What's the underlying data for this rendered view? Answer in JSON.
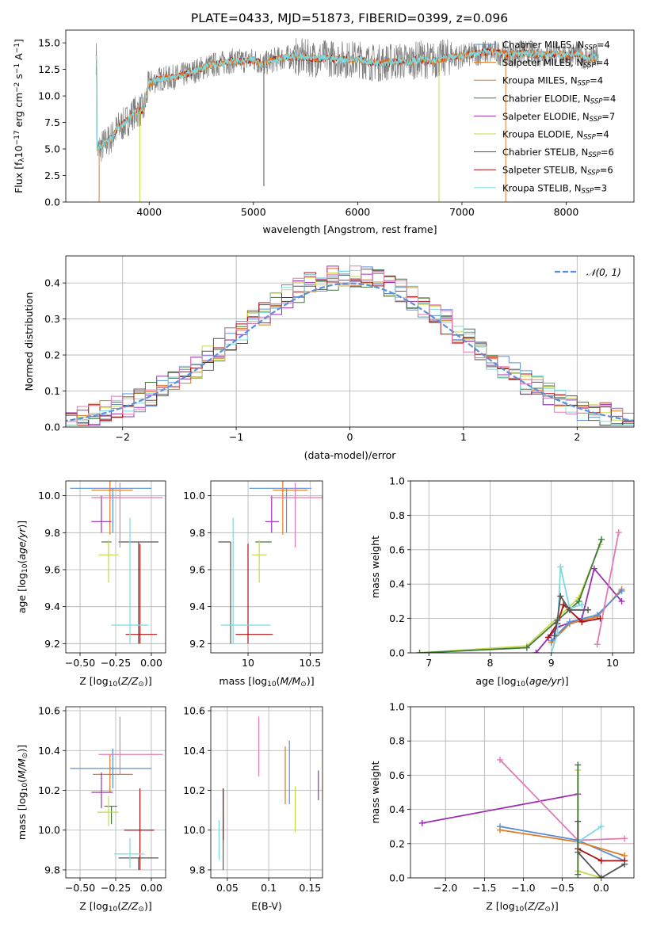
{
  "title": "PLATE=0433, MJD=51873, FIBERID=0399, z=0.096",
  "colors": {
    "Chabrier MILES": "#5b8fd9",
    "Salpeter MILES": "#e07a1f",
    "Kroupa MILES": "#e07a1f",
    "Chabrier ELODIE": "#3d7a3d",
    "Salpeter ELODIE": "#9b2fb0",
    "Kroupa ELODIE": "#c8d84a",
    "Chabrier STELIB": "#555555",
    "Salpeter STELIB": "#a81010",
    "Kroupa STELIB": "#7fd8df",
    "extra_pink": "#e37ab4"
  },
  "chart_data": [
    {
      "id": "spectrum",
      "type": "line",
      "xlabel": "wavelength [Angstrom, rest frame]",
      "ylabel": "Flux [f_λ10^-17 erg cm^-2 s^-1 A^-1]",
      "xlim": [
        3200,
        8650
      ],
      "ylim": [
        0,
        16.2
      ],
      "xticks": [
        4000,
        5000,
        6000,
        7000,
        8000
      ],
      "yticks": [
        0.0,
        2.5,
        5.0,
        7.5,
        10.0,
        12.5,
        15.0
      ],
      "grid": false,
      "legend_position": "top-right",
      "legend": [
        {
          "name": "Chabrier MILES",
          "sub": "SSP",
          "n": "=4"
        },
        {
          "name": "Salpeter MILES",
          "sub": "SSP",
          "n": "=4"
        },
        {
          "name": "Kroupa MILES",
          "sub": "SSP",
          "n": "=4"
        },
        {
          "name": "Chabrier ELODIE",
          "sub": "SSP",
          "n": "=4"
        },
        {
          "name": "Salpeter ELODIE",
          "sub": "SSP",
          "n": "=7"
        },
        {
          "name": "Kroupa ELODIE",
          "sub": "SSP",
          "n": "=4"
        },
        {
          "name": "Chabrier STELIB",
          "sub": "SSP",
          "n": "=6"
        },
        {
          "name": "Salpeter STELIB",
          "sub": "SSP",
          "n": "=6"
        },
        {
          "name": "Kroupa STELIB",
          "sub": "SSP",
          "n": "=3"
        }
      ],
      "continuum": [
        [
          3500,
          4.8
        ],
        [
          3550,
          5.3
        ],
        [
          3600,
          5.7
        ],
        [
          3650,
          6.2
        ],
        [
          3700,
          7.0
        ],
        [
          3750,
          7.3
        ],
        [
          3800,
          7.8
        ],
        [
          3850,
          8.4
        ],
        [
          3900,
          8.6
        ],
        [
          3950,
          8.7
        ],
        [
          4000,
          11.2
        ],
        [
          4100,
          11.6
        ],
        [
          4200,
          11.7
        ],
        [
          4300,
          11.9
        ],
        [
          4400,
          12.2
        ],
        [
          4500,
          12.6
        ],
        [
          4600,
          12.9
        ],
        [
          4700,
          13.1
        ],
        [
          4800,
          13.3
        ],
        [
          4900,
          13.3
        ],
        [
          5000,
          13.4
        ],
        [
          5100,
          13.0
        ],
        [
          5200,
          13.4
        ],
        [
          5300,
          13.6
        ],
        [
          5400,
          13.7
        ],
        [
          5500,
          13.6
        ],
        [
          5600,
          13.5
        ],
        [
          5700,
          13.6
        ],
        [
          5800,
          13.5
        ],
        [
          5900,
          13.4
        ],
        [
          6000,
          13.5
        ],
        [
          6100,
          13.2
        ],
        [
          6200,
          13.1
        ],
        [
          6300,
          13.2
        ],
        [
          6400,
          13.3
        ],
        [
          6500,
          13.2
        ],
        [
          6600,
          13.5
        ],
        [
          6700,
          13.3
        ],
        [
          6800,
          13.5
        ],
        [
          6900,
          13.7
        ],
        [
          7000,
          13.7
        ],
        [
          7100,
          13.9
        ],
        [
          7200,
          14.1
        ],
        [
          7300,
          14.1
        ],
        [
          7400,
          14.0
        ],
        [
          7500,
          13.9
        ],
        [
          7600,
          14.1
        ],
        [
          7700,
          13.9
        ],
        [
          7800,
          13.9
        ],
        [
          7900,
          14.0
        ],
        [
          8000,
          13.8
        ],
        [
          8100,
          14.0
        ],
        [
          8200,
          13.5
        ],
        [
          8300,
          13.6
        ]
      ],
      "spikes": [
        [
          3520,
          0
        ],
        [
          3910,
          0
        ],
        [
          5100,
          1.5
        ],
        [
          6780,
          0
        ],
        [
          7420,
          0
        ]
      ]
    },
    {
      "id": "residuals",
      "type": "histogram",
      "xlabel": "(data-model)/error",
      "ylabel": "Normed distribution",
      "xlim": [
        -2.5,
        2.5
      ],
      "ylim": [
        0,
        0.475
      ],
      "xticks": [
        -2,
        -1,
        0,
        1,
        2
      ],
      "yticks": [
        0.0,
        0.1,
        0.2,
        0.3,
        0.4
      ],
      "grid": true,
      "legend_position": "top-right",
      "legend": [
        {
          "name": "𝒩(0, 1)"
        }
      ],
      "bin_width": 0.1
    },
    {
      "id": "age_vs_Z",
      "type": "scatter",
      "xlabel": "Z [log10(Z/Z⊙)]",
      "ylabel": "age [log10(age/yr)]",
      "xlim": [
        -0.6,
        0.1
      ],
      "ylim": [
        9.15,
        10.08
      ],
      "xticks": [
        -0.5,
        -0.25,
        0.0
      ],
      "xticklabels": [
        "−0.50",
        "−0.25",
        "0.00"
      ],
      "yticks": [
        9.2,
        9.4,
        9.6,
        9.8,
        10.0
      ],
      "grid": true
    },
    {
      "id": "age_vs_mass",
      "type": "scatter",
      "xlabel": "mass [log10(M/M⊙)]",
      "xlim": [
        9.7,
        10.6
      ],
      "ylim": [
        9.15,
        10.08
      ],
      "xticks": [
        10.0,
        10.5
      ],
      "yticks": [
        9.2,
        9.4,
        9.6,
        9.8,
        10.0
      ],
      "grid": true
    },
    {
      "id": "weight_vs_age",
      "type": "line",
      "xlabel": "age [log10(age/yr)]",
      "ylabel": "mass weight",
      "xlim": [
        6.7,
        10.35
      ],
      "ylim": [
        0,
        1.0
      ],
      "xticks": [
        7,
        8,
        9,
        10
      ],
      "yticks": [
        0.0,
        0.2,
        0.4,
        0.6,
        0.8,
        1.0
      ],
      "grid": true
    },
    {
      "id": "mass_vs_Z",
      "type": "scatter",
      "xlabel": "Z [log10(Z/Z⊙)]",
      "ylabel": "mass [log10(M/M⊙)]",
      "xlim": [
        -0.6,
        0.1
      ],
      "ylim": [
        9.76,
        10.62
      ],
      "xticks": [
        -0.5,
        -0.25,
        0.0
      ],
      "xticklabels": [
        "−0.50",
        "−0.25",
        "0.00"
      ],
      "yticks": [
        9.8,
        10.0,
        10.2,
        10.4,
        10.6
      ],
      "grid": true
    },
    {
      "id": "mass_vs_ebv",
      "type": "scatter",
      "xlabel": "E(B-V)",
      "xlim": [
        0.03,
        0.165
      ],
      "ylim": [
        9.76,
        10.62
      ],
      "xticks": [
        0.05,
        0.1,
        0.15
      ],
      "yticks": [
        9.8,
        10.0,
        10.2,
        10.4,
        10.6
      ],
      "grid": true
    },
    {
      "id": "weight_vs_Z",
      "type": "line",
      "xlabel": "Z [log10(Z/Z⊙)]",
      "ylabel": "mass weight",
      "xlim": [
        -2.45,
        0.42
      ],
      "ylim": [
        0,
        1.0
      ],
      "xticks": [
        -2.0,
        -1.5,
        -1.0,
        -0.5,
        0.0
      ],
      "xticklabels": [
        "−2.0",
        "−1.5",
        "−1.0",
        "−0.5",
        "0.0"
      ],
      "yticks": [
        0.0,
        0.2,
        0.4,
        0.6,
        0.8,
        1.0
      ],
      "grid": true
    }
  ],
  "models": [
    {
      "name": "Chabrier MILES",
      "color": "#5b8fd9",
      "Z": -0.27,
      "Zerr": [
        0.3,
        0.27
      ],
      "age": 10.04,
      "ageErr": [
        0.24,
        0.0
      ],
      "mass": 10.31,
      "massErr": [
        0.1,
        0.1
      ],
      "massZerr": [
        0.3,
        0.27
      ],
      "massAgeErr": [
        0.3,
        0.2
      ],
      "ebv": 0.125,
      "ebvErr": [
        0.115,
        0.135
      ],
      "ebvMass": [
        10.13,
        10.45
      ]
    },
    {
      "name": "Kroupa MILES",
      "color": "#e07a1f",
      "Z": -0.29,
      "Zerr": [
        0.13,
        0.16
      ],
      "age": 10.03,
      "ageErr": [
        0.24,
        0.07
      ],
      "mass": 10.28,
      "massErr": [
        0.09,
        0.1
      ],
      "massZerr": [
        0.12,
        0.16
      ],
      "massAgeErr": [
        0.08,
        0.2
      ],
      "ebv": 0.12,
      "ebvErr": [
        0.12,
        0.12
      ],
      "ebvMass": [
        10.13,
        10.42
      ]
    },
    {
      "name": "Chabrier ELODIE",
      "color": "#3d7a3d",
      "Z": -0.28,
      "Zerr": [
        0.07,
        0.0
      ],
      "age": 9.75,
      "ageErr": [
        0.0,
        0.0
      ],
      "mass": 10.12,
      "massErr": [
        0.09,
        0.0
      ],
      "massZerr": [
        0.05,
        0.04
      ],
      "massAgeErr": [
        0.06,
        0.07
      ],
      "ebv": 0.13,
      "ebvErr": [
        0.13,
        0.13
      ],
      "ebvMass": [
        10.0,
        10.0
      ]
    },
    {
      "name": "Salpeter ELODIE",
      "color": "#9b2fb0",
      "Z": -0.35,
      "Zerr": [
        0.07,
        0.07
      ],
      "age": 9.86,
      "ageErr": [
        0.06,
        0.14
      ],
      "mass": 10.19,
      "massErr": [
        0.08,
        0.1
      ],
      "massZerr": [
        0.07,
        0.08
      ],
      "massAgeErr": [
        0.05,
        0.06
      ],
      "ebv": 0.16,
      "ebvErr": [
        0.16,
        0.16
      ],
      "ebvMass": [
        10.15,
        10.3
      ]
    },
    {
      "name": "Kroupa ELODIE",
      "color": "#c8d84a",
      "Z": -0.3,
      "Zerr": [
        0.07,
        0.07
      ],
      "age": 9.68,
      "ageErr": [
        0.15,
        0.08
      ],
      "mass": 10.09,
      "massErr": [
        0.07,
        0.08
      ],
      "massZerr": [
        0.08,
        0.07
      ],
      "massAgeErr": [
        0.06,
        0.06
      ],
      "ebv": 0.132,
      "ebvErr": [
        0.132,
        0.132
      ],
      "ebvMass": [
        9.99,
        10.22
      ]
    },
    {
      "name": "Chabrier STELIB",
      "color": "#555555",
      "Z": -0.09,
      "Zerr": [
        0.14,
        0.14
      ],
      "age": 9.75,
      "ageErr": [
        0.55,
        0.0
      ],
      "mass": 9.86,
      "massErr": [
        0.06,
        0.0
      ],
      "massZerr": [
        0.14,
        0.14
      ],
      "massAgeErr": [
        0.1,
        0.0
      ],
      "ebv": 0.045,
      "ebvErr": [
        0.045,
        0.045
      ],
      "ebvMass": [
        9.8,
        10.2
      ]
    },
    {
      "name": "Salpeter STELIB",
      "color": "#a81010",
      "Z": -0.08,
      "Zerr": [
        0.1,
        0.12
      ],
      "age": 9.25,
      "ageErr": [
        0.05,
        0.49
      ],
      "mass": 10.0,
      "massErr": [
        0.2,
        0.21
      ],
      "massZerr": [
        0.11,
        0.1
      ],
      "massAgeErr": [
        0.1,
        0.2
      ],
      "ebv": 0.045,
      "ebvErr": [
        0.045,
        0.045
      ],
      "ebvMass": [
        9.95,
        10.21
      ]
    },
    {
      "name": "Kroupa STELIB",
      "color": "#7fd8df",
      "Z": -0.15,
      "Zerr": [
        0.13,
        0.13
      ],
      "age": 9.3,
      "ageErr": [
        0.1,
        0.58
      ],
      "mass": 9.88,
      "massErr": [
        0.07,
        0.08
      ],
      "massZerr": [
        0.11,
        0.1
      ],
      "massAgeErr": [
        0.1,
        0.3
      ],
      "ebv": 0.04,
      "ebvErr": [
        0.04,
        0.04
      ],
      "ebvMass": [
        9.85,
        10.05
      ]
    },
    {
      "name": "extra",
      "color": "#e37ab4",
      "Z": -0.22,
      "Zerr": [
        0.2,
        0.3
      ],
      "age": 9.99,
      "ageErr": [
        0.27,
        0.08
      ],
      "mass": 10.38,
      "massErr": [
        0.1,
        0.19
      ],
      "massZerr": [
        0.15,
        0.3
      ],
      "massAgeErr": [
        0.2,
        0.3
      ],
      "ebv": 0.088,
      "ebvErr": [
        0.088,
        0.088
      ],
      "ebvMass": [
        10.27,
        10.57
      ]
    }
  ],
  "weights_age": [
    {
      "color": "#c8d84a",
      "pts": [
        [
          6.85,
          0.0
        ],
        [
          8.6,
          0.04
        ],
        [
          9.45,
          0.32
        ],
        [
          9.8,
          0.63
        ]
      ]
    },
    {
      "color": "#3d7a3d",
      "pts": [
        [
          6.85,
          0.0
        ],
        [
          8.6,
          0.03
        ],
        [
          9.45,
          0.3
        ],
        [
          9.82,
          0.66
        ]
      ]
    },
    {
      "color": "#9b2fb0",
      "pts": [
        [
          8.75,
          0.0
        ],
        [
          9.1,
          0.15
        ],
        [
          9.5,
          0.2
        ],
        [
          9.7,
          0.49
        ],
        [
          10.15,
          0.3
        ]
      ]
    },
    {
      "color": "#e07a1f",
      "pts": [
        [
          9.0,
          0.06
        ],
        [
          9.3,
          0.17
        ],
        [
          9.75,
          0.21
        ],
        [
          10.15,
          0.37
        ]
      ]
    },
    {
      "color": "#5b8fd9",
      "pts": [
        [
          9.0,
          0.07
        ],
        [
          9.3,
          0.18
        ],
        [
          9.75,
          0.22
        ],
        [
          10.15,
          0.36
        ]
      ]
    },
    {
      "color": "#a81010",
      "pts": [
        [
          8.95,
          0.09
        ],
        [
          9.1,
          0.17
        ],
        [
          9.2,
          0.28
        ],
        [
          9.5,
          0.18
        ],
        [
          9.8,
          0.2
        ]
      ]
    },
    {
      "color": "#7fd8df",
      "pts": [
        [
          9.0,
          0.0
        ],
        [
          9.1,
          0.11
        ],
        [
          9.15,
          0.5
        ],
        [
          9.3,
          0.26
        ],
        [
          9.5,
          0.28
        ]
      ]
    },
    {
      "color": "#555555",
      "pts": [
        [
          9.05,
          0.1
        ],
        [
          9.1,
          0.19
        ],
        [
          9.15,
          0.33
        ],
        [
          9.3,
          0.25
        ],
        [
          9.6,
          0.25
        ]
      ]
    },
    {
      "color": "#e37ab4",
      "pts": [
        [
          9.75,
          0.05
        ],
        [
          10.1,
          0.7
        ]
      ]
    }
  ],
  "weights_Z": [
    {
      "color": "#9b2fb0",
      "pts": [
        [
          -2.3,
          0.32
        ],
        [
          -0.3,
          0.49
        ]
      ]
    },
    {
      "color": "#e37ab4",
      "pts": [
        [
          -1.3,
          0.69
        ],
        [
          -0.3,
          0.22
        ],
        [
          0.3,
          0.23
        ]
      ]
    },
    {
      "color": "#5b8fd9",
      "pts": [
        [
          -1.3,
          0.3
        ],
        [
          -0.3,
          0.22
        ],
        [
          0.3,
          0.1
        ]
      ]
    },
    {
      "color": "#e07a1f",
      "pts": [
        [
          -1.3,
          0.28
        ],
        [
          -0.3,
          0.21
        ],
        [
          0.3,
          0.13
        ]
      ]
    },
    {
      "color": "#a81010",
      "pts": [
        [
          -0.3,
          0.17
        ],
        [
          0.0,
          0.1
        ],
        [
          0.3,
          0.1
        ]
      ]
    },
    {
      "color": "#7fd8df",
      "pts": [
        [
          -0.3,
          0.21
        ],
        [
          0.0,
          0.3
        ]
      ]
    },
    {
      "color": "#c8d84a",
      "pts": [
        [
          -0.3,
          0.63
        ],
        [
          -0.3,
          0.04
        ],
        [
          0.0,
          0.0
        ]
      ]
    },
    {
      "color": "#3d7a3d",
      "pts": [
        [
          -0.3,
          0.66
        ],
        [
          -0.3,
          0.02
        ]
      ]
    },
    {
      "color": "#555555",
      "pts": [
        [
          -0.3,
          0.33
        ],
        [
          -0.3,
          0.15
        ],
        [
          0.0,
          0.0
        ],
        [
          0.3,
          0.08
        ]
      ]
    }
  ]
}
